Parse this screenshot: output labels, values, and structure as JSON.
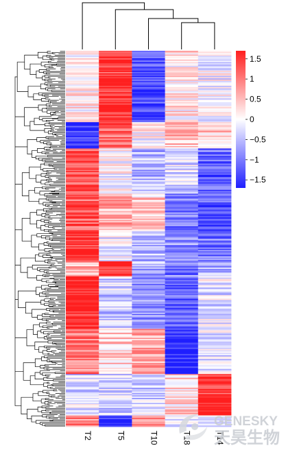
{
  "chart_data": {
    "type": "heatmap",
    "columns": [
      "T2",
      "T5",
      "T10",
      "T18",
      "T14"
    ],
    "column_dendrogram": "((T2,(T5,(T10,(T18,T14)))))",
    "row_dendrogram": "left, hierarchical clustering of genes",
    "n_rows": 300,
    "colorbar": {
      "ticks": [
        1.5,
        1,
        0.5,
        0,
        -0.5,
        -1,
        -1.5
      ],
      "tick_labels": [
        "1.5",
        "1",
        "0.5",
        "0",
        "−0.5",
        "−1",
        "−1.5"
      ],
      "range": [
        -1.7,
        1.7
      ],
      "colors": {
        "low": "#1f1fff",
        "mid": "#ffffff",
        "high": "#ff1f1f"
      }
    },
    "row_blocks": [
      {
        "from": 0.0,
        "to": 0.19,
        "values": [
          0.1,
          1.5,
          -1.3,
          0.2,
          -0.1
        ]
      },
      {
        "from": 0.19,
        "to": 0.26,
        "values": [
          -1.6,
          1.2,
          0.0,
          0.5,
          0.4
        ]
      },
      {
        "from": 0.26,
        "to": 0.38,
        "values": [
          1.3,
          0.0,
          -0.5,
          -0.3,
          -1.2
        ]
      },
      {
        "from": 0.38,
        "to": 0.48,
        "values": [
          1.2,
          0.6,
          0.4,
          -1.0,
          -1.3
        ]
      },
      {
        "from": 0.48,
        "to": 0.56,
        "values": [
          1.6,
          -0.1,
          -0.5,
          -0.7,
          -1.0
        ]
      },
      {
        "from": 0.56,
        "to": 0.6,
        "values": [
          0.6,
          1.6,
          -0.6,
          -1.0,
          -0.6
        ]
      },
      {
        "from": 0.6,
        "to": 0.74,
        "values": [
          1.7,
          -0.4,
          -0.8,
          -1.2,
          -0.2
        ]
      },
      {
        "from": 0.74,
        "to": 0.86,
        "values": [
          1.0,
          0.4,
          0.6,
          -1.6,
          -0.2
        ]
      },
      {
        "from": 0.86,
        "to": 0.92,
        "values": [
          -0.4,
          -0.3,
          -0.6,
          0.3,
          1.5
        ]
      },
      {
        "from": 0.92,
        "to": 0.97,
        "values": [
          -0.3,
          -0.3,
          -0.3,
          0.3,
          1.7
        ]
      },
      {
        "from": 0.97,
        "to": 1.0,
        "values": [
          0.9,
          -1.5,
          0.9,
          -0.3,
          -0.2
        ]
      }
    ]
  },
  "watermark": {
    "brand_en": "GENESKY",
    "brand_cn": "天昊生物",
    "logo_icon": "swirl-logo-icon"
  }
}
